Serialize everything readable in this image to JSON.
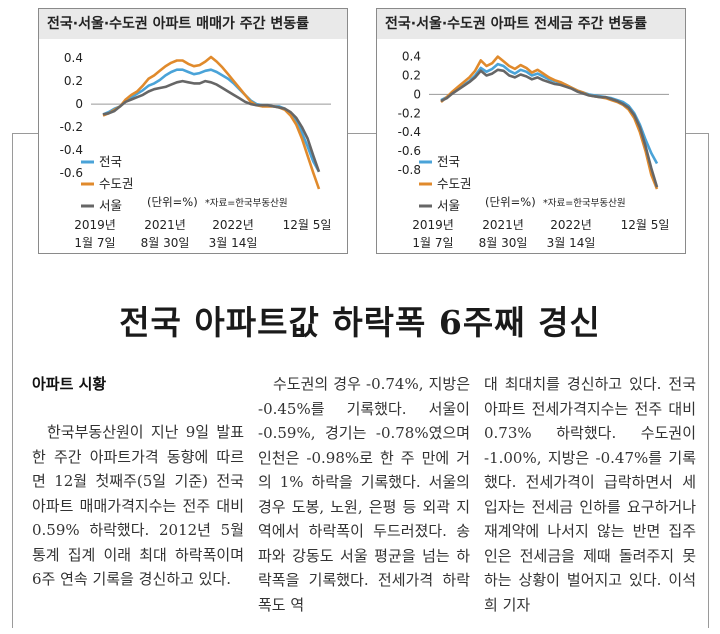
{
  "chart_data": [
    {
      "type": "line",
      "title": "전국·서울·수도권 아파트 매매가 주간 변동률",
      "y_ticks": [
        "0.4",
        "0.2",
        "0",
        "-0.2",
        "-0.4",
        "-0.6"
      ],
      "ylim": [
        -0.74,
        0.48
      ],
      "x_labels": [
        {
          "line1": "2019년",
          "line2": "1월 7일"
        },
        {
          "line1": "2021년",
          "line2": "8월 30일"
        },
        {
          "line1": "2022년",
          "line2": "3월 14일"
        },
        {
          "line1": "12월 5일",
          "line2": ""
        }
      ],
      "unit_note": "(단위=%)",
      "source_note": "*자료=한국부동산원",
      "series": [
        {
          "name": "전국",
          "color": "#4aa3d8",
          "values": [
            -0.09,
            -0.07,
            -0.04,
            -0.02,
            0.03,
            0.06,
            0.09,
            0.12,
            0.16,
            0.18,
            0.21,
            0.25,
            0.28,
            0.3,
            0.3,
            0.28,
            0.26,
            0.27,
            0.29,
            0.3,
            0.28,
            0.25,
            0.22,
            0.18,
            0.13,
            0.08,
            0.03,
            0.0,
            -0.01,
            -0.01,
            -0.02,
            -0.02,
            -0.04,
            -0.08,
            -0.14,
            -0.25,
            -0.37,
            -0.5,
            -0.59
          ]
        },
        {
          "name": "수도권",
          "color": "#e08a2c",
          "values": [
            -0.1,
            -0.08,
            -0.05,
            -0.02,
            0.04,
            0.08,
            0.11,
            0.16,
            0.22,
            0.25,
            0.29,
            0.33,
            0.36,
            0.38,
            0.38,
            0.35,
            0.33,
            0.34,
            0.37,
            0.41,
            0.37,
            0.32,
            0.26,
            0.2,
            0.14,
            0.08,
            0.02,
            -0.01,
            -0.02,
            -0.02,
            -0.02,
            -0.03,
            -0.05,
            -0.1,
            -0.18,
            -0.3,
            -0.45,
            -0.6,
            -0.74
          ]
        },
        {
          "name": "서울",
          "color": "#666666",
          "values": [
            -0.09,
            -0.08,
            -0.06,
            -0.02,
            0.02,
            0.04,
            0.06,
            0.08,
            0.11,
            0.13,
            0.14,
            0.15,
            0.17,
            0.19,
            0.2,
            0.19,
            0.18,
            0.18,
            0.2,
            0.19,
            0.17,
            0.14,
            0.11,
            0.08,
            0.05,
            0.02,
            0.0,
            -0.01,
            -0.01,
            -0.01,
            -0.02,
            -0.03,
            -0.04,
            -0.07,
            -0.12,
            -0.2,
            -0.3,
            -0.45,
            -0.59
          ]
        }
      ]
    },
    {
      "type": "line",
      "title": "전국·서울·수도권 아파트 전세금 주간 변동률",
      "y_ticks": [
        "0.4",
        "0.2",
        "0",
        "-0.2",
        "-0.4",
        "-0.6",
        "-0.8"
      ],
      "ylim": [
        -1.0,
        0.48
      ],
      "x_labels": [
        {
          "line1": "2019년",
          "line2": "1월 7일"
        },
        {
          "line1": "2021년",
          "line2": "8월 30일"
        },
        {
          "line1": "2022년",
          "line2": "3월 14일"
        },
        {
          "line1": "12월 5일",
          "line2": ""
        }
      ],
      "unit_note": "(단위=%)",
      "source_note": "*자료=한국부동산원",
      "series": [
        {
          "name": "전국",
          "color": "#4aa3d8",
          "values": [
            -0.06,
            -0.03,
            0.02,
            0.06,
            0.1,
            0.14,
            0.2,
            0.28,
            0.24,
            0.27,
            0.32,
            0.3,
            0.25,
            0.22,
            0.26,
            0.24,
            0.2,
            0.22,
            0.19,
            0.16,
            0.14,
            0.12,
            0.1,
            0.07,
            0.04,
            0.02,
            0.0,
            -0.01,
            -0.02,
            -0.03,
            -0.04,
            -0.06,
            -0.08,
            -0.12,
            -0.2,
            -0.32,
            -0.48,
            -0.62,
            -0.73
          ]
        },
        {
          "name": "수도권",
          "color": "#e08a2c",
          "values": [
            -0.08,
            -0.03,
            0.03,
            0.08,
            0.13,
            0.18,
            0.25,
            0.36,
            0.3,
            0.33,
            0.4,
            0.35,
            0.3,
            0.27,
            0.31,
            0.28,
            0.23,
            0.26,
            0.22,
            0.18,
            0.15,
            0.13,
            0.1,
            0.07,
            0.04,
            0.02,
            -0.01,
            -0.02,
            -0.03,
            -0.04,
            -0.06,
            -0.08,
            -0.11,
            -0.16,
            -0.25,
            -0.4,
            -0.6,
            -0.85,
            -1.0
          ]
        },
        {
          "name": "서울",
          "color": "#666666",
          "values": [
            -0.07,
            -0.04,
            0.01,
            0.05,
            0.09,
            0.13,
            0.18,
            0.25,
            0.2,
            0.22,
            0.26,
            0.25,
            0.2,
            0.18,
            0.21,
            0.19,
            0.16,
            0.18,
            0.15,
            0.13,
            0.11,
            0.1,
            0.08,
            0.06,
            0.03,
            0.01,
            -0.01,
            -0.02,
            -0.03,
            -0.03,
            -0.05,
            -0.07,
            -0.1,
            -0.14,
            -0.22,
            -0.35,
            -0.55,
            -0.78,
            -0.98
          ]
        }
      ]
    }
  ],
  "article": {
    "headline": "전국 아파트값 하락폭 6주째 경신",
    "section_label": "아파트 시황",
    "col1_text": "한국부동산원이 지난 9일 발표한 주간 아파트가격 동향에 따르면 12월 첫째주(5일 기준) 전국 아파트 매매가격지수는 전주 대비 0.59% 하락했다. 2012년 5월 통계 집계 이래 최대 하락폭이며 6주 연속 기록을 경신하고 있다.",
    "col2_text": "수도권의 경우 -0.74%, 지방은 -0.45%를 기록했다. 서울이 -0.59%, 경기는 -0.78%였으며 인천은 -0.98%로 한 주 만에 거의 1% 하락을 기록했다. 서울의 경우 도봉, 노원, 은평 등 외곽 지역에서 하락폭이 두드러졌다. 송파와 강동도 서울 평균을 넘는 하락폭을 기록했다. 전세가격 하락폭도 역",
    "col3_text": "대 최대치를 경신하고 있다. 전국 아파트 전세가격지수는 전주 대비 0.73% 하락했다. 수도권이 -1.00%, 지방은 -0.47%를 기록했다. 전세가격이 급락하면서 세입자는 전세금 인하를 요구하거나 재계약에 나서지 않는 반면 집주인은 전세금을 제때 돌려주지 못하는 상황이 벌어지고 있다.",
    "byline": "이석희 기자"
  }
}
